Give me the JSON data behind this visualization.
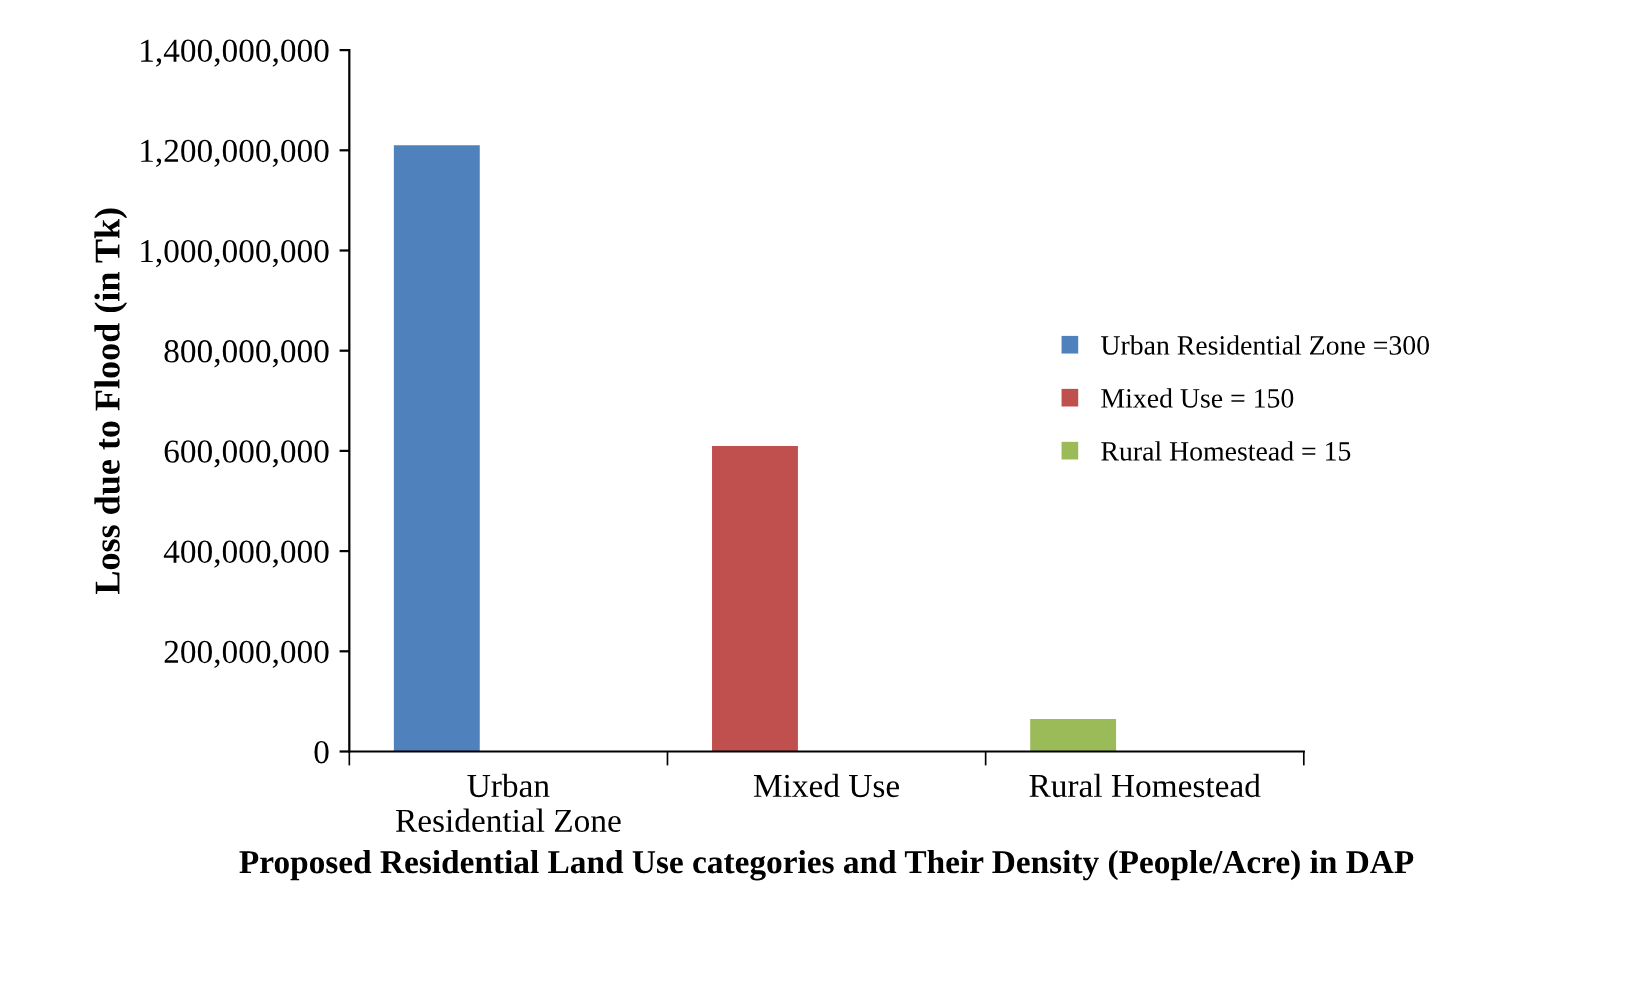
{
  "chart_data": {
    "type": "bar",
    "xlabel": "Proposed Residential Land Use categories and Their Density (People/Acre) in DAP",
    "ylabel": "Loss due to Flood (in Tk)",
    "categories": [
      "Urban\nResidential Zone",
      "Mixed Use",
      "Rural Homestead"
    ],
    "series": [
      {
        "name": "Urban Residential Zone =300",
        "color": "#4f81bd",
        "values": [
          1210000000,
          null,
          null
        ]
      },
      {
        "name": "Mixed Use = 150",
        "color": "#c0504d",
        "values": [
          null,
          610000000,
          null
        ]
      },
      {
        "name": "Rural Homestead = 15",
        "color": "#9bbb59",
        "values": [
          null,
          null,
          65000000
        ]
      }
    ],
    "ylim": [
      0,
      1400000000
    ],
    "yticks": [
      {
        "value": 0,
        "label": "0"
      },
      {
        "value": 200000000,
        "label": "200,000,000"
      },
      {
        "value": 400000000,
        "label": "400,000,000"
      },
      {
        "value": 600000000,
        "label": "600,000,000"
      },
      {
        "value": 800000000,
        "label": "800,000,000"
      },
      {
        "value": 1000000000,
        "label": "1,000,000,000"
      },
      {
        "value": 1200000000,
        "label": "1,200,000,000"
      },
      {
        "value": 1400000000,
        "label": "1,400,000,000"
      }
    ],
    "grid": false,
    "legend": "right"
  }
}
